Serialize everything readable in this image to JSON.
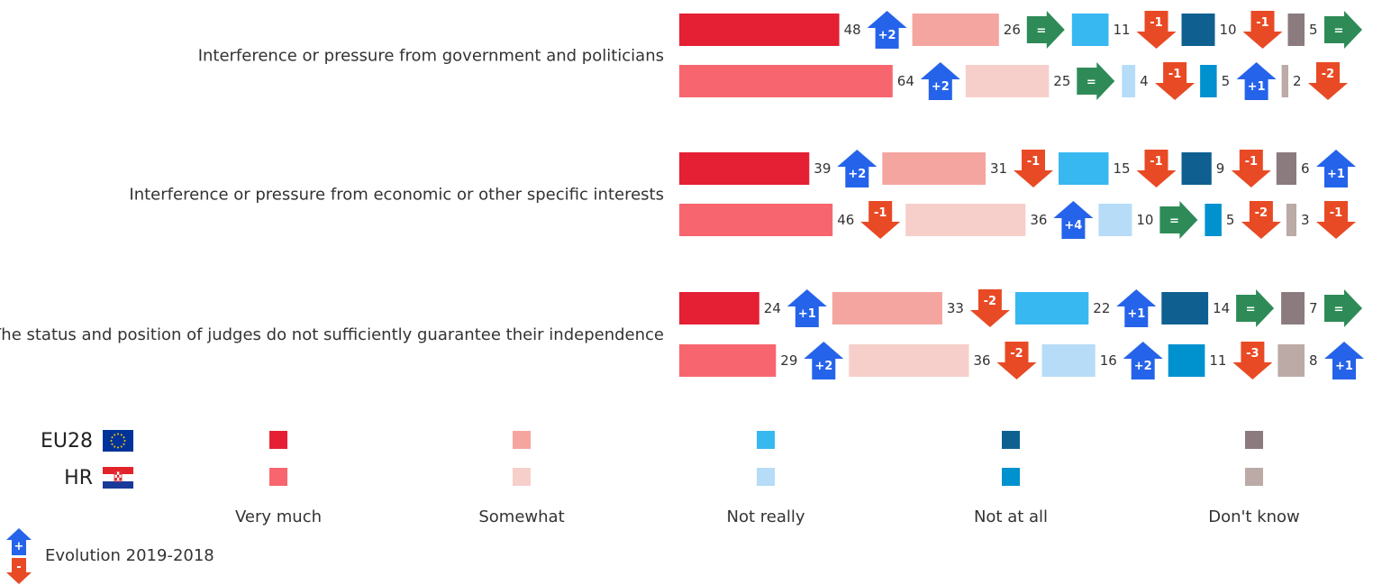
{
  "chart_data": {
    "type": "bar",
    "orientation": "horizontal",
    "stacked": false,
    "categories": [
      "Interference or pressure from government and politicians",
      "Interference or pressure from economic or other specific interests",
      "The status and position of judges do not sufficiently guarantee their independence"
    ],
    "series_groups": [
      {
        "name": "EU28",
        "flag": "eu-flag"
      },
      {
        "name": "HR",
        "flag": "croatia-flag"
      }
    ],
    "answers": [
      {
        "name": "Very much",
        "colors": {
          "EU28": "#e52034",
          "HR": "#f7666e"
        }
      },
      {
        "name": "Somewhat",
        "colors": {
          "EU28": "#f5a5a0",
          "HR": "#f7cfca"
        }
      },
      {
        "name": "Not really",
        "colors": {
          "EU28": "#38b8f0",
          "HR": "#b6dcf8"
        }
      },
      {
        "name": "Not at all",
        "colors": {
          "EU28": "#0f6091",
          "HR": "#0091cf"
        }
      },
      {
        "name": "Don't know",
        "colors": {
          "EU28": "#8b7b7e",
          "HR": "#bbaaa6"
        }
      }
    ],
    "values": {
      "EU28": [
        [
          48,
          26,
          11,
          10,
          5
        ],
        [
          39,
          31,
          15,
          9,
          6
        ],
        [
          24,
          33,
          22,
          14,
          7
        ]
      ],
      "HR": [
        [
          64,
          25,
          4,
          5,
          2
        ],
        [
          46,
          36,
          10,
          5,
          3
        ],
        [
          29,
          36,
          16,
          11,
          8
        ]
      ]
    },
    "evolution": {
      "EU28": [
        [
          "+2",
          "=",
          "-1",
          "-1",
          "="
        ],
        [
          "+2",
          "-1",
          "-1",
          "-1",
          "+1"
        ],
        [
          "+1",
          "-2",
          "+1",
          "=",
          "="
        ]
      ],
      "HR": [
        [
          "+2",
          "=",
          "-1",
          "+1",
          "-2"
        ],
        [
          "-1",
          "+4",
          "=",
          "-2",
          "-1"
        ],
        [
          "+2",
          "-2",
          "+2",
          "-3",
          "+1"
        ]
      ]
    },
    "evolution_colors": {
      "up": "#2563ea",
      "down": "#e84a25",
      "equal": "#2e8b57"
    },
    "evolution_legend": {
      "up_symbol": "+",
      "down_symbol": "-",
      "label": "Evolution 2019-2018"
    }
  }
}
